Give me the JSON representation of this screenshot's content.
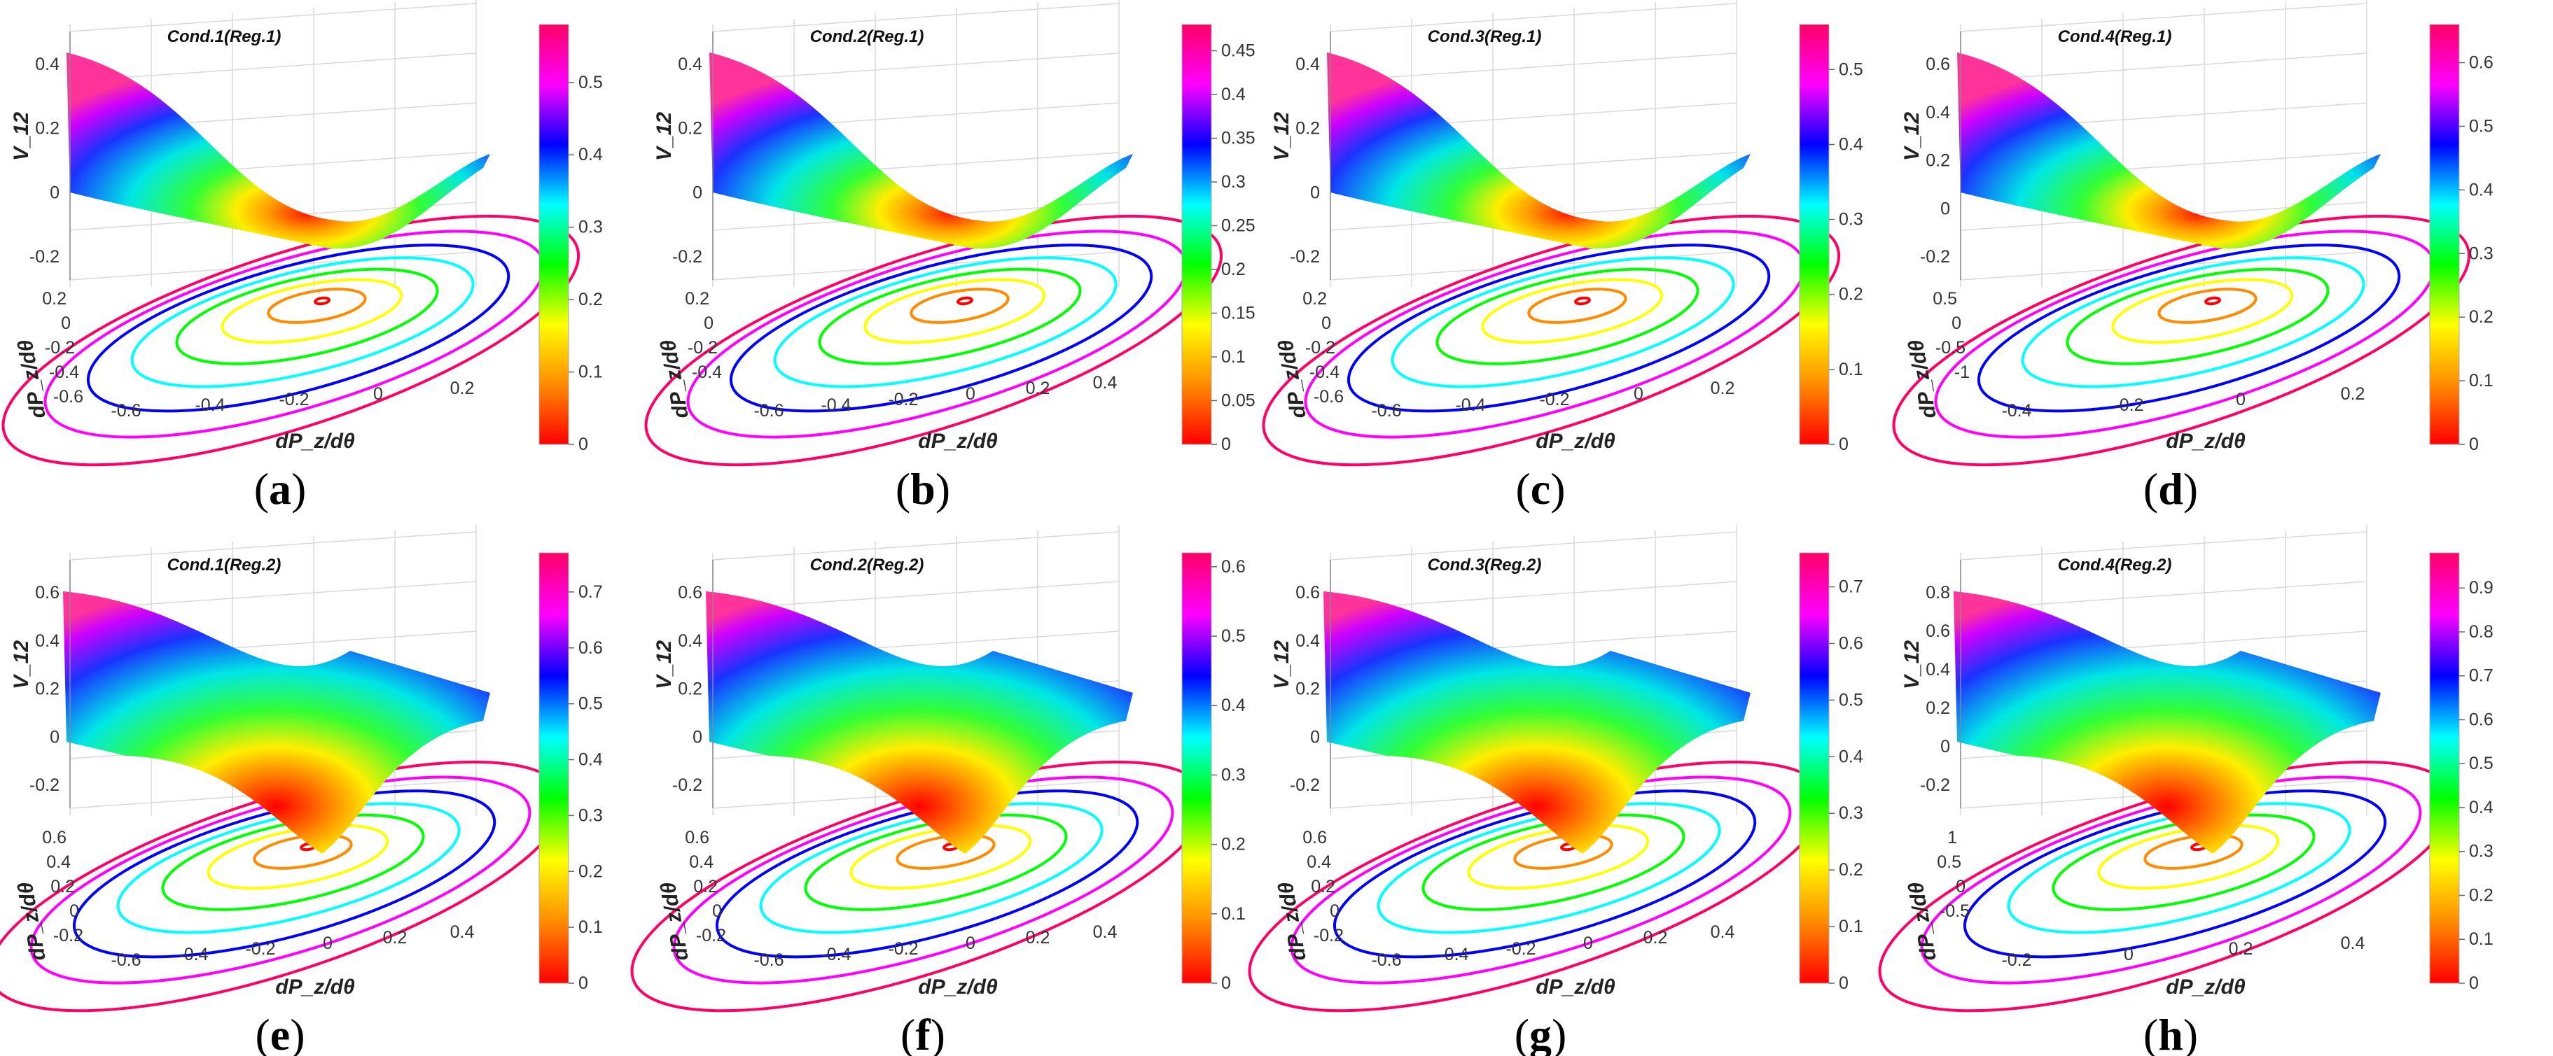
{
  "figure": {
    "description_panels": 8,
    "colormap": [
      "#ff0000",
      "#ff8c00",
      "#ffff00",
      "#00ff00",
      "#00ffff",
      "#0000ff",
      "#ff00ff",
      "#ff0066"
    ]
  },
  "chart_data": [
    {
      "type": "surface",
      "panel_label": "a",
      "title": "Cond.1(Reg.1)",
      "xlabel": "dP_z/dθ",
      "ylabel": "dP_z/dθ",
      "zlabel": "V_12",
      "x_ticks": [
        "-0.6",
        "-0.4",
        "-0.2",
        "0",
        "0.2"
      ],
      "y_ticks": [
        "0.2",
        "0",
        "-0.2",
        "-0.4",
        "-0.6"
      ],
      "z_ticks": [
        "0.4",
        "0.2",
        "0",
        "-0.2"
      ],
      "colorbar_ticks": [
        "0.5",
        "0.4",
        "0.3",
        "0.2",
        "0.1",
        "0"
      ],
      "colorbar_range": [
        0,
        0.58
      ],
      "zlim": [
        -0.2,
        0.5
      ]
    },
    {
      "type": "surface",
      "panel_label": "b",
      "title": "Cond.2(Reg.1)",
      "xlabel": "dP_z/dθ",
      "ylabel": "dP_z/dθ",
      "zlabel": "V_12",
      "x_ticks": [
        "-0.6",
        "-0.4",
        "-0.2",
        "0",
        "0.2",
        "0.4"
      ],
      "y_ticks": [
        "0.2",
        "0",
        "-0.2",
        "-0.4"
      ],
      "z_ticks": [
        "0.4",
        "0.2",
        "0",
        "-0.2"
      ],
      "colorbar_ticks": [
        "0.45",
        "0.4",
        "0.35",
        "0.3",
        "0.25",
        "0.2",
        "0.15",
        "0.1",
        "0.05",
        "0"
      ],
      "colorbar_range": [
        0,
        0.48
      ],
      "zlim": [
        -0.2,
        0.45
      ]
    },
    {
      "type": "surface",
      "panel_label": "c",
      "title": "Cond.3(Reg.1)",
      "xlabel": "dP_z/dθ",
      "ylabel": "dP_z/dθ",
      "zlabel": "V_12",
      "x_ticks": [
        "-0.6",
        "-0.4",
        "-0.2",
        "0",
        "0.2"
      ],
      "y_ticks": [
        "0.2",
        "0",
        "-0.2",
        "-0.4",
        "-0.6"
      ],
      "z_ticks": [
        "0.4",
        "0.2",
        "0",
        "-0.2"
      ],
      "colorbar_ticks": [
        "0.5",
        "0.4",
        "0.3",
        "0.2",
        "0.1",
        "0"
      ],
      "colorbar_range": [
        0,
        0.56
      ],
      "zlim": [
        -0.2,
        0.5
      ]
    },
    {
      "type": "surface",
      "panel_label": "d",
      "title": "Cond.4(Reg.1)",
      "xlabel": "dP_z/dθ",
      "ylabel": "dP_z/dθ",
      "zlabel": "V_12",
      "x_ticks": [
        "-0.4",
        "-0.2",
        "0",
        "0.2"
      ],
      "y_ticks": [
        "0.5",
        "0",
        "-0.5",
        "-1"
      ],
      "z_ticks": [
        "0.6",
        "0.4",
        "0.2",
        "0",
        "-0.2"
      ],
      "colorbar_ticks": [
        "0.6",
        "0.5",
        "0.4",
        "0.3",
        "0.2",
        "0.1",
        "0"
      ],
      "colorbar_range": [
        0,
        0.66
      ],
      "zlim": [
        -0.2,
        0.6
      ]
    },
    {
      "type": "surface",
      "panel_label": "e",
      "title": "Cond.1(Reg.2)",
      "xlabel": "dP_z/dθ",
      "ylabel": "dP_z/dθ",
      "zlabel": "V_12",
      "x_ticks": [
        "-0.6",
        "-0.4",
        "-0.2",
        "0",
        "0.2",
        "0.4"
      ],
      "y_ticks": [
        "0.6",
        "0.4",
        "0.2",
        "0",
        "-0.2"
      ],
      "z_ticks": [
        "0.6",
        "0.4",
        "0.2",
        "0",
        "-0.2"
      ],
      "colorbar_ticks": [
        "0.7",
        "0.6",
        "0.5",
        "0.4",
        "0.3",
        "0.2",
        "0.1",
        "0"
      ],
      "colorbar_range": [
        0,
        0.77
      ],
      "zlim": [
        -0.2,
        0.7
      ]
    },
    {
      "type": "surface",
      "panel_label": "f",
      "title": "Cond.2(Reg.2)",
      "xlabel": "dP_z/dθ",
      "ylabel": "dP_z/dθ",
      "zlabel": "V_12",
      "x_ticks": [
        "-0.6",
        "-0.4",
        "-0.2",
        "0",
        "0.2",
        "0.4"
      ],
      "y_ticks": [
        "0.6",
        "0.4",
        "0.2",
        "0",
        "-0.2"
      ],
      "z_ticks": [
        "0.6",
        "0.4",
        "0.2",
        "0",
        "-0.2"
      ],
      "colorbar_ticks": [
        "0.6",
        "0.5",
        "0.4",
        "0.3",
        "0.2",
        "0.1",
        "0"
      ],
      "colorbar_range": [
        0,
        0.62
      ],
      "zlim": [
        -0.2,
        0.6
      ]
    },
    {
      "type": "surface",
      "panel_label": "g",
      "title": "Cond.3(Reg.2)",
      "xlabel": "dP_z/dθ",
      "ylabel": "dP_z/dθ",
      "zlabel": "V_12",
      "x_ticks": [
        "-0.6",
        "-0.4",
        "-0.2",
        "0",
        "0.2",
        "0.4"
      ],
      "y_ticks": [
        "0.6",
        "0.4",
        "0.2",
        "0",
        "-0.2"
      ],
      "z_ticks": [
        "0.6",
        "0.4",
        "0.2",
        "0",
        "-0.2"
      ],
      "colorbar_ticks": [
        "0.7",
        "0.6",
        "0.5",
        "0.4",
        "0.3",
        "0.2",
        "0.1",
        "0"
      ],
      "colorbar_range": [
        0,
        0.76
      ],
      "zlim": [
        -0.2,
        0.7
      ]
    },
    {
      "type": "surface",
      "panel_label": "h",
      "title": "Cond.4(Reg.2)",
      "xlabel": "dP_z/dθ",
      "ylabel": "dP_z/dθ",
      "zlabel": "V_12",
      "x_ticks": [
        "-0.2",
        "0",
        "0.2",
        "0.4"
      ],
      "y_ticks": [
        "1",
        "0.5",
        "0",
        "-0.5"
      ],
      "z_ticks": [
        "0.8",
        "0.6",
        "0.4",
        "0.2",
        "0",
        "-0.2"
      ],
      "colorbar_ticks": [
        "0.9",
        "0.8",
        "0.7",
        "0.6",
        "0.5",
        "0.4",
        "0.3",
        "0.2",
        "0.1",
        "0"
      ],
      "colorbar_range": [
        0,
        0.98
      ],
      "zlim": [
        -0.2,
        0.9
      ]
    }
  ]
}
